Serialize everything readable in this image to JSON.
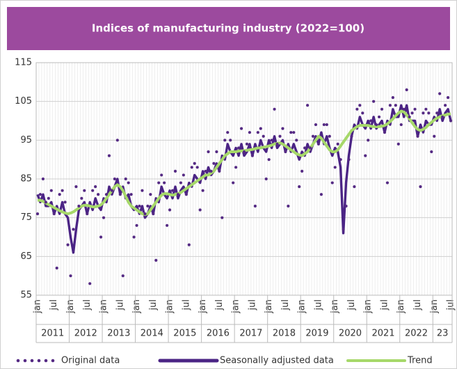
{
  "chart_data": {
    "type": "line",
    "title": "Indices of manufacturing industry (2022=100)",
    "categories": [
      "jan",
      null,
      null,
      null,
      null,
      null,
      "jul",
      null,
      null,
      null,
      null,
      null,
      "jan",
      null,
      null,
      null,
      null,
      null,
      "jul",
      null,
      null,
      null,
      null,
      null,
      "jan",
      null,
      null,
      null,
      null,
      null,
      "jul",
      null,
      null,
      null,
      null,
      null,
      "jan",
      null,
      null,
      null,
      null,
      null,
      "jul",
      null,
      null,
      null,
      null,
      null,
      "jan",
      null,
      null,
      null,
      null,
      null,
      "jul",
      null,
      null,
      null,
      null,
      null,
      "jan",
      null,
      null,
      null,
      null,
      null,
      "jul",
      null,
      null,
      null,
      null,
      null,
      "jan",
      null,
      null,
      null,
      null,
      null,
      "jul",
      null,
      null,
      null,
      null,
      null,
      "jan",
      null,
      null,
      null,
      null,
      null,
      "jul",
      null,
      null,
      null,
      null,
      null,
      "jan",
      null,
      null,
      null,
      null,
      null,
      "jul",
      null,
      null,
      null,
      null,
      null,
      "jan",
      null,
      null,
      null,
      null,
      null,
      "jul",
      null,
      null,
      null,
      null,
      null,
      "jan",
      null,
      null,
      null,
      null,
      null,
      "jul",
      null,
      null,
      null,
      null,
      null,
      "jan",
      null,
      null,
      null,
      null,
      null,
      "jul",
      null,
      null,
      null,
      null,
      null,
      "jan",
      null,
      null,
      null,
      null,
      null,
      "jul"
    ],
    "years": [
      "2011",
      "2012",
      "2013",
      "2014",
      "2015",
      "2016",
      "2017",
      "2018",
      "2019",
      "2020",
      "2021",
      "2022",
      "23"
    ],
    "ylim": [
      55,
      115
    ],
    "yticks": [
      55,
      65,
      75,
      85,
      95,
      105,
      115
    ],
    "grid": true,
    "series": [
      {
        "name": "Original data",
        "color": "#552a84",
        "style": "dots",
        "values": [
          76,
          81,
          85,
          79,
          80,
          82,
          76,
          62,
          81,
          82,
          79,
          68,
          60,
          72,
          83,
          78,
          80,
          82,
          76,
          58,
          82,
          83,
          81,
          70,
          75,
          81,
          91,
          82,
          85,
          95,
          81,
          60,
          85,
          84,
          81,
          70,
          73,
          78,
          82,
          76,
          78,
          81,
          76,
          64,
          84,
          86,
          84,
          73,
          77,
          82,
          87,
          81,
          84,
          86,
          81,
          68,
          88,
          89,
          88,
          77,
          82,
          87,
          92,
          87,
          89,
          92,
          87,
          75,
          95,
          97,
          95,
          84,
          88,
          93,
          98,
          92,
          94,
          97,
          91,
          78,
          97,
          98,
          96,
          85,
          90,
          95,
          103,
          94,
          96,
          98,
          92,
          78,
          97,
          97,
          95,
          83,
          87,
          93,
          104,
          93,
          96,
          99,
          94,
          81,
          99,
          99,
          96,
          84,
          88,
          94,
          90,
          72,
          78,
          90,
          96,
          83,
          103,
          104,
          102,
          91,
          95,
          100,
          105,
          99,
          101,
          103,
          97,
          84,
          104,
          106,
          104,
          94,
          99,
          103,
          108,
          101,
          102,
          103,
          96,
          83,
          102,
          103,
          102,
          92,
          96,
          102,
          107,
          101,
          104,
          106,
          100
        ]
      },
      {
        "name": "Seasonally adjusted data",
        "color": "#4b2485",
        "style": "thick",
        "values": [
          81,
          79,
          81,
          78,
          78,
          79,
          76,
          78,
          76,
          79,
          76,
          75,
          70,
          66,
          72,
          77,
          78,
          79,
          76,
          79,
          77,
          80,
          78,
          77,
          80,
          79,
          83,
          81,
          83,
          85,
          81,
          83,
          80,
          81,
          78,
          77,
          78,
          76,
          78,
          75,
          76,
          78,
          76,
          80,
          79,
          83,
          81,
          80,
          82,
          80,
          83,
          80,
          82,
          83,
          81,
          84,
          83,
          86,
          85,
          84,
          87,
          85,
          88,
          86,
          87,
          89,
          87,
          91,
          90,
          94,
          92,
          91,
          93,
          91,
          94,
          91,
          92,
          94,
          91,
          94,
          92,
          95,
          93,
          92,
          95,
          93,
          96,
          93,
          94,
          95,
          92,
          94,
          92,
          94,
          92,
          90,
          92,
          91,
          94,
          92,
          94,
          96,
          94,
          97,
          94,
          96,
          93,
          91,
          93,
          92,
          88,
          71,
          84,
          91,
          96,
          99,
          98,
          101,
          99,
          98,
          100,
          98,
          101,
          98,
          99,
          100,
          97,
          100,
          99,
          103,
          101,
          101,
          104,
          101,
          104,
          100,
          100,
          100,
          96,
          99,
          97,
          100,
          99,
          99,
          101,
          100,
          103,
          100,
          102,
          103,
          100
        ]
      },
      {
        "name": "Trend",
        "color": "#a6d86a",
        "style": "line",
        "values": [
          79.5,
          79.5,
          79.2,
          78.8,
          78.4,
          78,
          77.6,
          77.2,
          76.8,
          76.5,
          76.2,
          76,
          76.2,
          76.5,
          77,
          77.5,
          78,
          78.2,
          78.2,
          78,
          77.8,
          77.8,
          78,
          78.3,
          79,
          80,
          81,
          82,
          83,
          83.5,
          83,
          82,
          80.5,
          79,
          78,
          77.5,
          77,
          76.5,
          76,
          75.8,
          76,
          77,
          78,
          79,
          80,
          80.8,
          81.2,
          81.2,
          81,
          80.8,
          81,
          81.2,
          81.5,
          82,
          82.5,
          83,
          83.5,
          84,
          84.5,
          85,
          85.5,
          86,
          86,
          86.5,
          87,
          88,
          89,
          90,
          91,
          91.5,
          92,
          92,
          92,
          92.2,
          92.2,
          92.3,
          92.4,
          92.5,
          92.6,
          92.8,
          93,
          93,
          93.2,
          93.3,
          93.5,
          93.7,
          94,
          94.2,
          94.3,
          94,
          93.5,
          93,
          92.5,
          92,
          91.5,
          91.2,
          91,
          91.5,
          92,
          93,
          94,
          95,
          96,
          95.5,
          94.5,
          93.5,
          92.5,
          92,
          92,
          92.5,
          93.5,
          94.5,
          95.5,
          96.5,
          97.5,
          98,
          98.5,
          98.8,
          98.8,
          98.8,
          98.8,
          98.6,
          98.5,
          98.5,
          98.5,
          98.6,
          98.8,
          99.2,
          99.8,
          100.5,
          101.3,
          102,
          102.5,
          102.3,
          101.5,
          100.5,
          99.5,
          98.5,
          97.8,
          97.5,
          97.8,
          98.3,
          99,
          99.6,
          100.2,
          100.7,
          101,
          101.3,
          101.5,
          101.7,
          101.8
        ]
      }
    ]
  }
}
